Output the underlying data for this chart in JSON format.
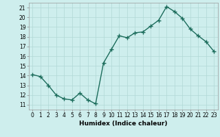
{
  "x": [
    0,
    1,
    2,
    3,
    4,
    5,
    6,
    7,
    8,
    9,
    10,
    11,
    12,
    13,
    14,
    15,
    16,
    17,
    18,
    19,
    20,
    21,
    22,
    23
  ],
  "y": [
    14.1,
    13.9,
    13.0,
    12.0,
    11.6,
    11.5,
    12.2,
    11.5,
    11.1,
    15.3,
    16.7,
    18.1,
    17.9,
    18.4,
    18.5,
    19.1,
    19.7,
    21.1,
    20.6,
    19.9,
    18.8,
    18.1,
    17.5,
    16.5
  ],
  "xlabel": "Humidex (Indice chaleur)",
  "line_color": "#1a6b5a",
  "marker": "+",
  "marker_size": 4,
  "bg_color": "#ceeeed",
  "grid_color": "#b0d8d5",
  "xlim": [
    -0.5,
    23.5
  ],
  "ylim": [
    10.5,
    21.5
  ],
  "yticks": [
    11,
    12,
    13,
    14,
    15,
    16,
    17,
    18,
    19,
    20,
    21
  ],
  "xticks": [
    0,
    1,
    2,
    3,
    4,
    5,
    6,
    7,
    8,
    9,
    10,
    11,
    12,
    13,
    14,
    15,
    16,
    17,
    18,
    19,
    20,
    21,
    22,
    23
  ],
  "tick_fontsize": 5.5,
  "label_fontsize": 6.5,
  "linewidth": 1.0
}
